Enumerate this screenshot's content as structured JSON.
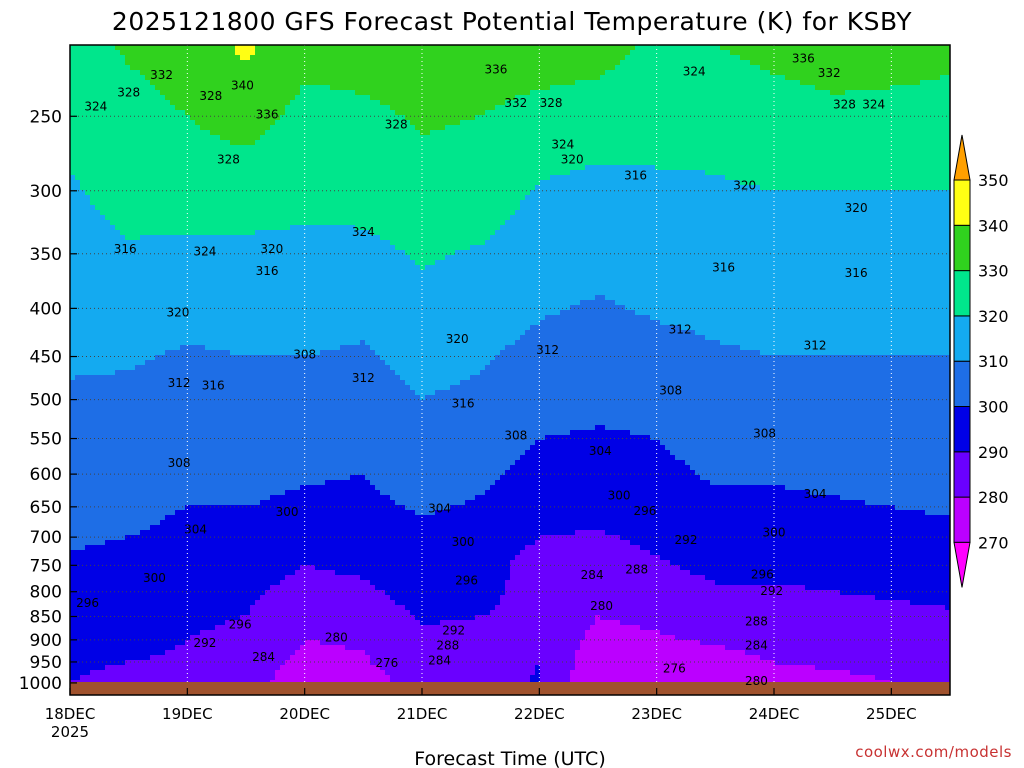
{
  "chart_data": {
    "type": "heatmap",
    "title": "2025121800 GFS Forecast Potential Temperature (K) for KSBY",
    "xlabel": "Forecast Time (UTC)",
    "ylabel": "",
    "credit": "coolwx.com/models",
    "ylim": [
      1030,
      210
    ],
    "yscale": "log",
    "xlim": [
      0,
      7.5
    ],
    "y_ticks": [
      250,
      300,
      350,
      400,
      450,
      500,
      550,
      600,
      650,
      700,
      750,
      800,
      850,
      900,
      950,
      1000
    ],
    "x_ticks": [
      {
        "x": 0,
        "label": "18DEC",
        "sub": "2025"
      },
      {
        "x": 1,
        "label": "19DEC",
        "sub": ""
      },
      {
        "x": 2,
        "label": "20DEC",
        "sub": ""
      },
      {
        "x": 3,
        "label": "21DEC",
        "sub": ""
      },
      {
        "x": 4,
        "label": "22DEC",
        "sub": ""
      },
      {
        "x": 5,
        "label": "23DEC",
        "sub": ""
      },
      {
        "x": 6,
        "label": "24DEC",
        "sub": ""
      },
      {
        "x": 7,
        "label": "25DEC",
        "sub": ""
      }
    ],
    "grid": true,
    "colorbar": {
      "levels": [
        270,
        280,
        290,
        300,
        310,
        320,
        330,
        340,
        350
      ],
      "colors": [
        "#ff00ff",
        "#bb00ff",
        "#6a00ff",
        "#0000e6",
        "#1e6ee6",
        "#14aaf0",
        "#00e68c",
        "#30d21e",
        "#ffff14",
        "#ffa000"
      ],
      "extend": "both"
    },
    "ground_color": "#a0522d",
    "x": [
      0,
      0.5,
      1,
      1.5,
      2,
      2.5,
      3,
      3.5,
      4,
      4.5,
      5,
      5.5,
      6,
      6.5,
      7,
      7.5
    ],
    "y": [
      1000,
      950,
      900,
      850,
      800,
      750,
      700,
      650,
      600,
      550,
      500,
      450,
      400,
      350,
      300,
      250,
      210
    ],
    "values": [
      [
        290,
        286,
        287,
        283,
        275,
        276,
        284,
        284,
        291,
        270,
        272,
        274,
        278,
        278,
        280,
        280
      ],
      [
        292,
        290,
        289,
        285,
        278,
        279,
        286,
        286,
        290,
        273,
        275,
        277,
        280,
        281,
        282,
        283
      ],
      [
        294,
        292,
        290,
        287,
        280,
        281,
        288,
        288,
        289,
        277,
        279,
        281,
        283,
        284,
        285,
        286
      ],
      [
        296,
        294,
        292,
        290,
        282,
        284,
        291,
        290,
        288,
        280,
        282,
        285,
        286,
        287,
        288,
        289
      ],
      [
        297,
        296,
        294,
        292,
        286,
        288,
        294,
        292,
        287,
        283,
        286,
        289,
        289,
        290,
        291,
        292
      ],
      [
        299,
        298,
        296,
        295,
        290,
        292,
        296,
        294,
        286,
        286,
        289,
        292,
        292,
        293,
        294,
        295
      ],
      [
        301,
        300,
        298,
        297,
        294,
        295,
        298,
        296,
        290,
        289,
        292,
        295,
        295,
        296,
        297,
        298
      ],
      [
        303,
        302,
        300,
        300,
        298,
        298,
        301,
        299,
        294,
        293,
        296,
        298,
        298,
        299,
        300,
        301
      ],
      [
        305,
        304,
        302,
        303,
        301,
        300,
        304,
        302,
        297,
        296,
        298,
        301,
        301,
        302,
        303,
        304
      ],
      [
        307,
        306,
        304,
        306,
        304,
        303,
        307,
        305,
        300,
        299,
        300,
        303,
        304,
        305,
        306,
        306
      ],
      [
        309,
        308,
        306,
        308,
        307,
        306,
        310,
        308,
        304,
        302,
        303,
        306,
        307,
        308,
        308,
        308
      ],
      [
        311,
        311,
        309,
        310,
        310,
        309,
        313,
        311,
        307,
        305,
        307,
        309,
        310,
        310,
        310,
        310
      ],
      [
        314,
        314,
        313,
        313,
        313,
        312,
        317,
        315,
        311,
        309,
        311,
        312,
        313,
        313,
        313,
        313
      ],
      [
        317,
        319,
        318,
        318,
        318,
        317,
        321,
        319,
        315,
        313,
        315,
        315,
        316,
        316,
        316,
        316
      ],
      [
        319,
        323,
        324,
        324,
        322,
        324,
        327,
        325,
        319,
        317,
        319,
        319,
        320,
        320,
        320,
        320
      ],
      [
        323,
        327,
        330,
        334,
        327,
        328,
        331,
        330,
        326,
        325,
        322,
        323,
        325,
        327,
        327,
        327
      ],
      [
        327,
        331,
        334,
        342,
        333,
        334,
        336,
        336,
        336,
        334,
        328,
        330,
        333,
        336,
        334,
        332
      ]
    ],
    "contour_labels": [
      {
        "x": 0.78,
        "y": 226,
        "t": "332"
      },
      {
        "x": 1.2,
        "y": 238,
        "t": "328"
      },
      {
        "x": 0.22,
        "y": 244,
        "t": "324"
      },
      {
        "x": 0.5,
        "y": 236,
        "t": "328"
      },
      {
        "x": 1.47,
        "y": 232,
        "t": "340"
      },
      {
        "x": 1.68,
        "y": 249,
        "t": "336"
      },
      {
        "x": 1.35,
        "y": 278,
        "t": "328"
      },
      {
        "x": 2.78,
        "y": 255,
        "t": "328"
      },
      {
        "x": 3.63,
        "y": 223,
        "t": "336"
      },
      {
        "x": 3.8,
        "y": 242,
        "t": "332"
      },
      {
        "x": 4.1,
        "y": 242,
        "t": "328"
      },
      {
        "x": 4.2,
        "y": 268,
        "t": "324"
      },
      {
        "x": 4.28,
        "y": 278,
        "t": "320"
      },
      {
        "x": 4.82,
        "y": 289,
        "t": "316"
      },
      {
        "x": 5.32,
        "y": 224,
        "t": "324"
      },
      {
        "x": 6.25,
        "y": 217,
        "t": "336"
      },
      {
        "x": 6.47,
        "y": 225,
        "t": "332"
      },
      {
        "x": 6.6,
        "y": 243,
        "t": "328"
      },
      {
        "x": 6.85,
        "y": 243,
        "t": "324"
      },
      {
        "x": 5.75,
        "y": 296,
        "t": "320"
      },
      {
        "x": 6.7,
        "y": 313,
        "t": "320"
      },
      {
        "x": 1.15,
        "y": 348,
        "t": "324"
      },
      {
        "x": 2.5,
        "y": 332,
        "t": "324"
      },
      {
        "x": 0.47,
        "y": 346,
        "t": "316"
      },
      {
        "x": 1.72,
        "y": 346,
        "t": "320"
      },
      {
        "x": 1.68,
        "y": 365,
        "t": "316"
      },
      {
        "x": 0.92,
        "y": 404,
        "t": "320"
      },
      {
        "x": 5.57,
        "y": 362,
        "t": "316"
      },
      {
        "x": 6.7,
        "y": 367,
        "t": "316"
      },
      {
        "x": 3.3,
        "y": 431,
        "t": "320"
      },
      {
        "x": 4.07,
        "y": 443,
        "t": "312"
      },
      {
        "x": 5.2,
        "y": 421,
        "t": "312"
      },
      {
        "x": 6.35,
        "y": 438,
        "t": "312"
      },
      {
        "x": 2.0,
        "y": 448,
        "t": "308"
      },
      {
        "x": 2.5,
        "y": 474,
        "t": "312"
      },
      {
        "x": 0.93,
        "y": 480,
        "t": "312"
      },
      {
        "x": 1.22,
        "y": 483,
        "t": "316"
      },
      {
        "x": 3.35,
        "y": 505,
        "t": "316"
      },
      {
        "x": 5.12,
        "y": 489,
        "t": "308"
      },
      {
        "x": 3.8,
        "y": 546,
        "t": "308"
      },
      {
        "x": 4.52,
        "y": 567,
        "t": "304"
      },
      {
        "x": 0.93,
        "y": 584,
        "t": "308"
      },
      {
        "x": 5.92,
        "y": 543,
        "t": "308"
      },
      {
        "x": 3.15,
        "y": 653,
        "t": "304"
      },
      {
        "x": 6.35,
        "y": 630,
        "t": "304"
      },
      {
        "x": 4.68,
        "y": 632,
        "t": "300"
      },
      {
        "x": 1.85,
        "y": 658,
        "t": "300"
      },
      {
        "x": 4.9,
        "y": 657,
        "t": "296"
      },
      {
        "x": 1.07,
        "y": 687,
        "t": "304"
      },
      {
        "x": 3.35,
        "y": 708,
        "t": "300"
      },
      {
        "x": 5.25,
        "y": 705,
        "t": "292"
      },
      {
        "x": 6.0,
        "y": 692,
        "t": "300"
      },
      {
        "x": 0.72,
        "y": 774,
        "t": "300"
      },
      {
        "x": 3.38,
        "y": 778,
        "t": "296"
      },
      {
        "x": 4.45,
        "y": 768,
        "t": "284"
      },
      {
        "x": 4.83,
        "y": 758,
        "t": "288"
      },
      {
        "x": 5.9,
        "y": 767,
        "t": "296"
      },
      {
        "x": 5.98,
        "y": 799,
        "t": "292"
      },
      {
        "x": 0.15,
        "y": 822,
        "t": "296"
      },
      {
        "x": 4.53,
        "y": 828,
        "t": "280"
      },
      {
        "x": 1.45,
        "y": 867,
        "t": "296"
      },
      {
        "x": 3.27,
        "y": 880,
        "t": "292"
      },
      {
        "x": 5.85,
        "y": 860,
        "t": "288"
      },
      {
        "x": 2.27,
        "y": 895,
        "t": "280"
      },
      {
        "x": 1.15,
        "y": 907,
        "t": "292"
      },
      {
        "x": 3.22,
        "y": 912,
        "t": "288"
      },
      {
        "x": 5.85,
        "y": 913,
        "t": "284"
      },
      {
        "x": 1.65,
        "y": 938,
        "t": "284"
      },
      {
        "x": 2.7,
        "y": 952,
        "t": "276"
      },
      {
        "x": 3.15,
        "y": 947,
        "t": "284"
      },
      {
        "x": 5.15,
        "y": 965,
        "t": "276"
      },
      {
        "x": 5.85,
        "y": 995,
        "t": "280"
      }
    ]
  }
}
